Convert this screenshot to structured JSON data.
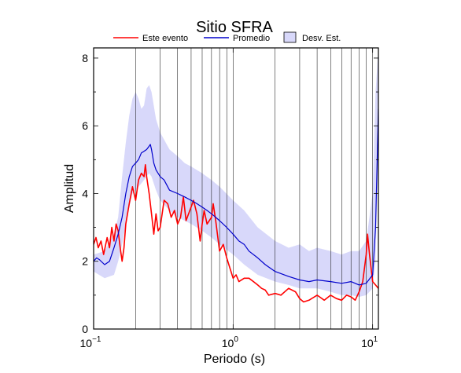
{
  "chart_data": {
    "type": "line",
    "title": "Sitio SFRA",
    "xlabel": "Periodo (s)",
    "ylabel": "Amplitud",
    "xscale": "log",
    "xlim": [
      0.1,
      11
    ],
    "ylim": [
      0,
      8.3
    ],
    "x_ticks": [
      {
        "base": "10",
        "exp": "−1"
      },
      {
        "base": "10",
        "exp": "0"
      },
      {
        "base": "10",
        "exp": "1"
      }
    ],
    "y_ticks": [
      "0",
      "2",
      "4",
      "6",
      "8"
    ],
    "grid": "log-vertical",
    "legend_position": "top",
    "colors": {
      "event": "#ff0000",
      "mean": "#0000cc",
      "band": "#d8d8fa",
      "band_edge": "#000000"
    },
    "legend": [
      {
        "label": "Este evento",
        "kind": "line",
        "color": "#ff0000"
      },
      {
        "label": "Promedio",
        "kind": "line",
        "color": "#0000cc"
      },
      {
        "label": "Desv. Est.",
        "kind": "box",
        "color": "#d8d8fa"
      }
    ],
    "series": [
      {
        "key": "event",
        "points": [
          [
            0.1,
            2.5
          ],
          [
            0.104,
            2.7
          ],
          [
            0.108,
            2.4
          ],
          [
            0.113,
            2.6
          ],
          [
            0.118,
            2.2
          ],
          [
            0.125,
            2.7
          ],
          [
            0.13,
            2.4
          ],
          [
            0.135,
            3.0
          ],
          [
            0.14,
            2.6
          ],
          [
            0.145,
            3.1
          ],
          [
            0.15,
            2.9
          ],
          [
            0.155,
            2.4
          ],
          [
            0.16,
            2.0
          ],
          [
            0.165,
            2.4
          ],
          [
            0.17,
            3.1
          ],
          [
            0.18,
            3.7
          ],
          [
            0.19,
            4.2
          ],
          [
            0.2,
            3.8
          ],
          [
            0.21,
            4.4
          ],
          [
            0.22,
            4.6
          ],
          [
            0.23,
            4.5
          ],
          [
            0.235,
            4.85
          ],
          [
            0.24,
            4.5
          ],
          [
            0.25,
            4.0
          ],
          [
            0.26,
            3.4
          ],
          [
            0.27,
            2.8
          ],
          [
            0.28,
            3.4
          ],
          [
            0.29,
            2.9
          ],
          [
            0.3,
            3.0
          ],
          [
            0.32,
            3.8
          ],
          [
            0.34,
            3.7
          ],
          [
            0.36,
            3.3
          ],
          [
            0.38,
            3.5
          ],
          [
            0.4,
            3.1
          ],
          [
            0.42,
            3.3
          ],
          [
            0.44,
            3.9
          ],
          [
            0.46,
            3.2
          ],
          [
            0.5,
            3.6
          ],
          [
            0.52,
            3.8
          ],
          [
            0.55,
            3.4
          ],
          [
            0.58,
            2.6
          ],
          [
            0.6,
            3.1
          ],
          [
            0.62,
            3.5
          ],
          [
            0.65,
            3.1
          ],
          [
            0.7,
            3.3
          ],
          [
            0.72,
            3.7
          ],
          [
            0.75,
            3.2
          ],
          [
            0.8,
            2.3
          ],
          [
            0.85,
            2.5
          ],
          [
            0.9,
            2.1
          ],
          [
            1.0,
            1.5
          ],
          [
            1.05,
            1.6
          ],
          [
            1.1,
            1.4
          ],
          [
            1.2,
            1.5
          ],
          [
            1.3,
            1.5
          ],
          [
            1.4,
            1.4
          ],
          [
            1.5,
            1.3
          ],
          [
            1.6,
            1.2
          ],
          [
            1.7,
            1.15
          ],
          [
            1.8,
            1.0
          ],
          [
            2.0,
            1.05
          ],
          [
            2.2,
            1.0
          ],
          [
            2.5,
            1.2
          ],
          [
            2.8,
            1.1
          ],
          [
            3.0,
            0.9
          ],
          [
            3.2,
            0.8
          ],
          [
            3.5,
            0.85
          ],
          [
            4.0,
            1.0
          ],
          [
            4.5,
            0.85
          ],
          [
            5.0,
            1.0
          ],
          [
            5.5,
            0.9
          ],
          [
            6.0,
            0.85
          ],
          [
            6.5,
            1.0
          ],
          [
            7.0,
            0.95
          ],
          [
            7.5,
            0.85
          ],
          [
            8.0,
            1.1
          ],
          [
            8.5,
            1.4
          ],
          [
            9.0,
            2.2
          ],
          [
            9.2,
            2.8
          ],
          [
            9.5,
            2.2
          ],
          [
            10.0,
            1.4
          ],
          [
            10.5,
            1.3
          ],
          [
            11.0,
            1.2
          ]
        ]
      },
      {
        "key": "mean",
        "points": [
          [
            0.1,
            2.0
          ],
          [
            0.105,
            2.1
          ],
          [
            0.11,
            2.05
          ],
          [
            0.12,
            1.9
          ],
          [
            0.13,
            2.0
          ],
          [
            0.14,
            2.4
          ],
          [
            0.15,
            2.8
          ],
          [
            0.16,
            3.3
          ],
          [
            0.17,
            4.0
          ],
          [
            0.18,
            4.5
          ],
          [
            0.19,
            4.8
          ],
          [
            0.2,
            4.9
          ],
          [
            0.21,
            5.0
          ],
          [
            0.22,
            5.2
          ],
          [
            0.23,
            5.25
          ],
          [
            0.24,
            5.3
          ],
          [
            0.25,
            5.4
          ],
          [
            0.255,
            5.45
          ],
          [
            0.26,
            5.3
          ],
          [
            0.27,
            4.9
          ],
          [
            0.28,
            4.7
          ],
          [
            0.3,
            4.5
          ],
          [
            0.32,
            4.4
          ],
          [
            0.35,
            4.1
          ],
          [
            0.4,
            4.0
          ],
          [
            0.45,
            3.9
          ],
          [
            0.5,
            3.8
          ],
          [
            0.55,
            3.7
          ],
          [
            0.6,
            3.6
          ],
          [
            0.65,
            3.5
          ],
          [
            0.7,
            3.4
          ],
          [
            0.75,
            3.3
          ],
          [
            0.8,
            3.2
          ],
          [
            0.9,
            3.0
          ],
          [
            1.0,
            2.8
          ],
          [
            1.1,
            2.6
          ],
          [
            1.2,
            2.5
          ],
          [
            1.3,
            2.3
          ],
          [
            1.5,
            2.1
          ],
          [
            1.7,
            1.9
          ],
          [
            2.0,
            1.7
          ],
          [
            2.5,
            1.55
          ],
          [
            3.0,
            1.45
          ],
          [
            3.5,
            1.4
          ],
          [
            4.0,
            1.45
          ],
          [
            5.0,
            1.4
          ],
          [
            6.0,
            1.35
          ],
          [
            7.0,
            1.4
          ],
          [
            8.0,
            1.3
          ],
          [
            9.0,
            1.35
          ],
          [
            10.0,
            1.6
          ],
          [
            10.5,
            3.0
          ],
          [
            11.0,
            6.5
          ]
        ]
      }
    ],
    "band": [
      [
        0.1,
        1.7,
        2.2
      ],
      [
        0.12,
        1.5,
        2.3
      ],
      [
        0.14,
        1.6,
        2.8
      ],
      [
        0.15,
        2.0,
        3.3
      ],
      [
        0.16,
        2.5,
        4.5
      ],
      [
        0.17,
        3.1,
        5.5
      ],
      [
        0.18,
        3.6,
        6.3
      ],
      [
        0.19,
        4.0,
        6.8
      ],
      [
        0.2,
        4.1,
        7.0
      ],
      [
        0.21,
        4.2,
        6.8
      ],
      [
        0.22,
        4.3,
        6.5
      ],
      [
        0.23,
        4.4,
        6.6
      ],
      [
        0.24,
        4.5,
        7.1
      ],
      [
        0.25,
        4.6,
        7.2
      ],
      [
        0.26,
        4.5,
        7.0
      ],
      [
        0.28,
        4.1,
        6.2
      ],
      [
        0.3,
        3.8,
        5.8
      ],
      [
        0.35,
        3.5,
        5.3
      ],
      [
        0.4,
        3.3,
        5.1
      ],
      [
        0.45,
        3.2,
        4.9
      ],
      [
        0.5,
        3.1,
        4.8
      ],
      [
        0.6,
        2.9,
        4.6
      ],
      [
        0.7,
        2.7,
        4.4
      ],
      [
        0.8,
        2.5,
        4.2
      ],
      [
        1.0,
        2.2,
        3.8
      ],
      [
        1.2,
        1.9,
        3.5
      ],
      [
        1.5,
        1.6,
        3.0
      ],
      [
        2.0,
        1.4,
        2.6
      ],
      [
        2.5,
        1.3,
        2.4
      ],
      [
        3.0,
        1.2,
        2.5
      ],
      [
        3.5,
        1.2,
        2.3
      ],
      [
        4.0,
        1.2,
        2.4
      ],
      [
        5.0,
        1.1,
        2.3
      ],
      [
        6.0,
        1.0,
        2.2
      ],
      [
        7.0,
        1.0,
        2.3
      ],
      [
        8.0,
        0.95,
        2.3
      ],
      [
        9.0,
        1.0,
        2.6
      ],
      [
        10.0,
        1.2,
        4.0
      ],
      [
        10.5,
        2.0,
        7.0
      ],
      [
        11.0,
        5.5,
        8.3
      ]
    ]
  }
}
